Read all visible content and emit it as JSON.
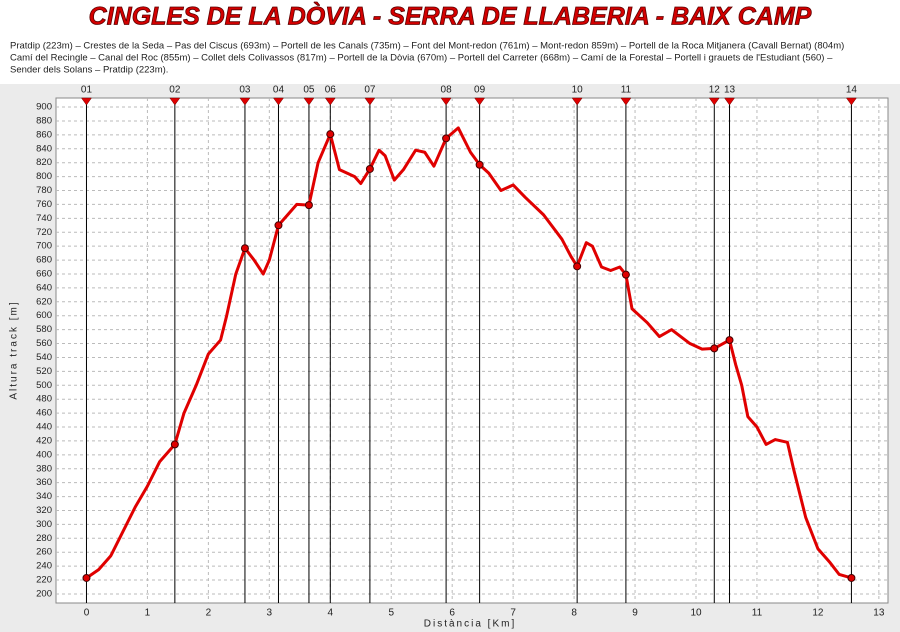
{
  "chart_data": {
    "type": "line",
    "title": "CINGLES DE LA DÒVIA - SERRA DE LLABERIA - BAIX CAMP",
    "description": [
      "Pratdip (223m) – Crestes de la Seda – Pas del Ciscus (693m) – Portell de les Canals (735m) – Font del Mont-redon (761m) – Mont-redon 859m) – Portell de la Roca Mitjanera (Cavall Bernat) (804m)",
      "Camí del Recingle – Canal del Roc (855m) – Collet dels Colivassos (817m) – Portell de la Dòvia (670m) – Portell del Carreter (668m) – Camí de la Forestal – Portell i grauets de l'Estudiant (560) –",
      "Sender dels Solans – Pratdip (223m)."
    ],
    "x_label": "Distància [Km]",
    "y_label": "Altura track [m]",
    "xlim": [
      -0.5,
      13.15
    ],
    "ylim": [
      187,
      913
    ],
    "xticks": [
      0,
      1,
      2,
      3,
      4,
      5,
      6,
      7,
      8,
      9,
      10,
      11,
      12,
      13
    ],
    "yticks": [
      200,
      220,
      240,
      260,
      280,
      300,
      320,
      340,
      360,
      380,
      400,
      420,
      440,
      460,
      480,
      500,
      520,
      540,
      560,
      580,
      600,
      620,
      640,
      660,
      680,
      700,
      720,
      740,
      760,
      780,
      800,
      820,
      840,
      860,
      880,
      900
    ],
    "grid": true,
    "series": [
      {
        "color": "#e00000",
        "x": [
          0,
          0.2,
          0.4,
          0.6,
          0.8,
          1.0,
          1.2,
          1.45,
          1.6,
          1.8,
          2.0,
          2.2,
          2.3,
          2.45,
          2.6,
          2.75,
          2.9,
          3.0,
          3.15,
          3.3,
          3.45,
          3.65,
          3.8,
          4.0,
          4.15,
          4.4,
          4.5,
          4.65,
          4.8,
          4.9,
          5.05,
          5.2,
          5.4,
          5.55,
          5.7,
          5.9,
          6.1,
          6.3,
          6.45,
          6.6,
          6.8,
          7.0,
          7.2,
          7.5,
          7.8,
          7.95,
          8.05,
          8.2,
          8.3,
          8.45,
          8.6,
          8.75,
          8.85,
          8.95,
          9.2,
          9.4,
          9.6,
          9.9,
          10.1,
          10.3,
          10.55,
          10.65,
          10.75,
          10.85,
          11.0,
          11.15,
          11.3,
          11.5,
          11.6,
          11.8,
          12.0,
          12.2,
          12.35,
          12.55
        ],
        "values": [
          223,
          235,
          255,
          290,
          325,
          355,
          390,
          415,
          460,
          500,
          545,
          565,
          600,
          660,
          697,
          680,
          660,
          680,
          730,
          745,
          760,
          759,
          820,
          861,
          810,
          800,
          790,
          811,
          838,
          830,
          795,
          810,
          838,
          835,
          815,
          855,
          870,
          835,
          817,
          805,
          780,
          788,
          770,
          745,
          710,
          685,
          671,
          705,
          700,
          670,
          665,
          670,
          659,
          610,
          590,
          570,
          580,
          560,
          552,
          553,
          565,
          530,
          500,
          455,
          440,
          415,
          422,
          418,
          380,
          310,
          265,
          245,
          228,
          223
        ]
      }
    ],
    "waypoints": {
      "color": "#e00000",
      "labels": [
        "01",
        "02",
        "03",
        "04",
        "05",
        "06",
        "07",
        "08",
        "09",
        "10",
        "11",
        "12",
        "13",
        "14"
      ],
      "x": [
        0,
        1.45,
        2.6,
        3.15,
        3.65,
        4.0,
        4.65,
        5.9,
        6.45,
        8.05,
        8.85,
        10.3,
        10.55,
        12.55
      ],
      "values": [
        223,
        415,
        697,
        730,
        759,
        861,
        811,
        855,
        817,
        671,
        659,
        553,
        565,
        223
      ]
    }
  }
}
